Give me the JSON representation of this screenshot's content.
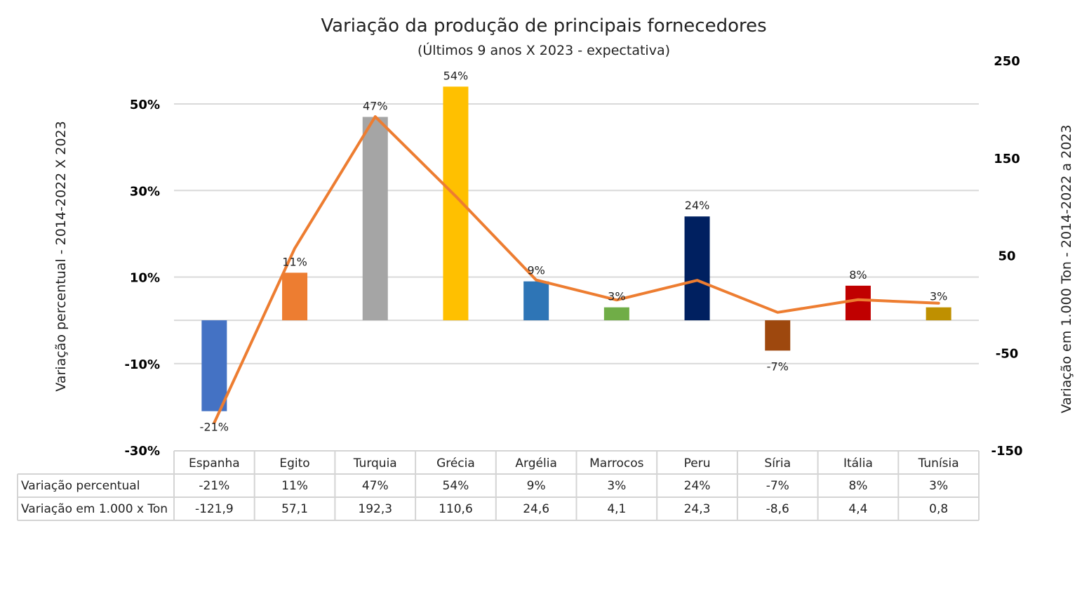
{
  "chart_data": {
    "type": "bar",
    "title": "Variação da produção de principais fornecedores",
    "subtitle": "(Últimos 9 anos X 2023  - expectativa)",
    "ylabel": "Variação percentual - 2014-2022 X 2023",
    "y2label": "Variação em 1.000 Ton -  2014-2022 a 2023",
    "categories": [
      "Espanha",
      "Egito",
      "Turquia",
      "Grécia",
      "Argélia",
      "Marrocos",
      "Peru",
      "Síria",
      "Itália",
      "Tunísia"
    ],
    "ylim": [
      -30,
      60
    ],
    "yticks": [
      50,
      30,
      10,
      -10,
      -30
    ],
    "ytick_labels": [
      "50%",
      "30%",
      "10%",
      "-10%",
      "-30%"
    ],
    "y2lim": [
      -150,
      250
    ],
    "y2ticks": [
      250,
      150,
      50,
      -50,
      -150
    ],
    "y2tick_labels": [
      "250",
      "150",
      "50",
      "-50",
      "-150"
    ],
    "grid": true,
    "series": [
      {
        "name": "Variação percentual",
        "type": "bar",
        "axis": "left",
        "values": [
          -21,
          11,
          47,
          54,
          9,
          3,
          24,
          -7,
          8,
          3
        ],
        "labels": [
          "-21%",
          "11%",
          "47%",
          "54%",
          "9%",
          "3%",
          "24%",
          "-7%",
          "8%",
          "3%"
        ],
        "colors": [
          "#4472C4",
          "#ED7D31",
          "#A5A5A5",
          "#FFC000",
          "#2E75B6",
          "#70AD47",
          "#002060",
          "#9E480E",
          "#C00000",
          "#BF9000"
        ]
      },
      {
        "name": "Variação em 1.000 x Ton",
        "type": "line",
        "axis": "right",
        "values": [
          -121.9,
          57.1,
          192.3,
          110.6,
          24.6,
          4.1,
          24.3,
          -8.6,
          4.4,
          0.8
        ],
        "labels": [
          "-121,9",
          "57,1",
          "192,3",
          "110,6",
          "24,6",
          "4,1",
          "24,3",
          "-8,6",
          "4,4",
          "0,8"
        ],
        "color": "#ED7D31"
      }
    ]
  }
}
